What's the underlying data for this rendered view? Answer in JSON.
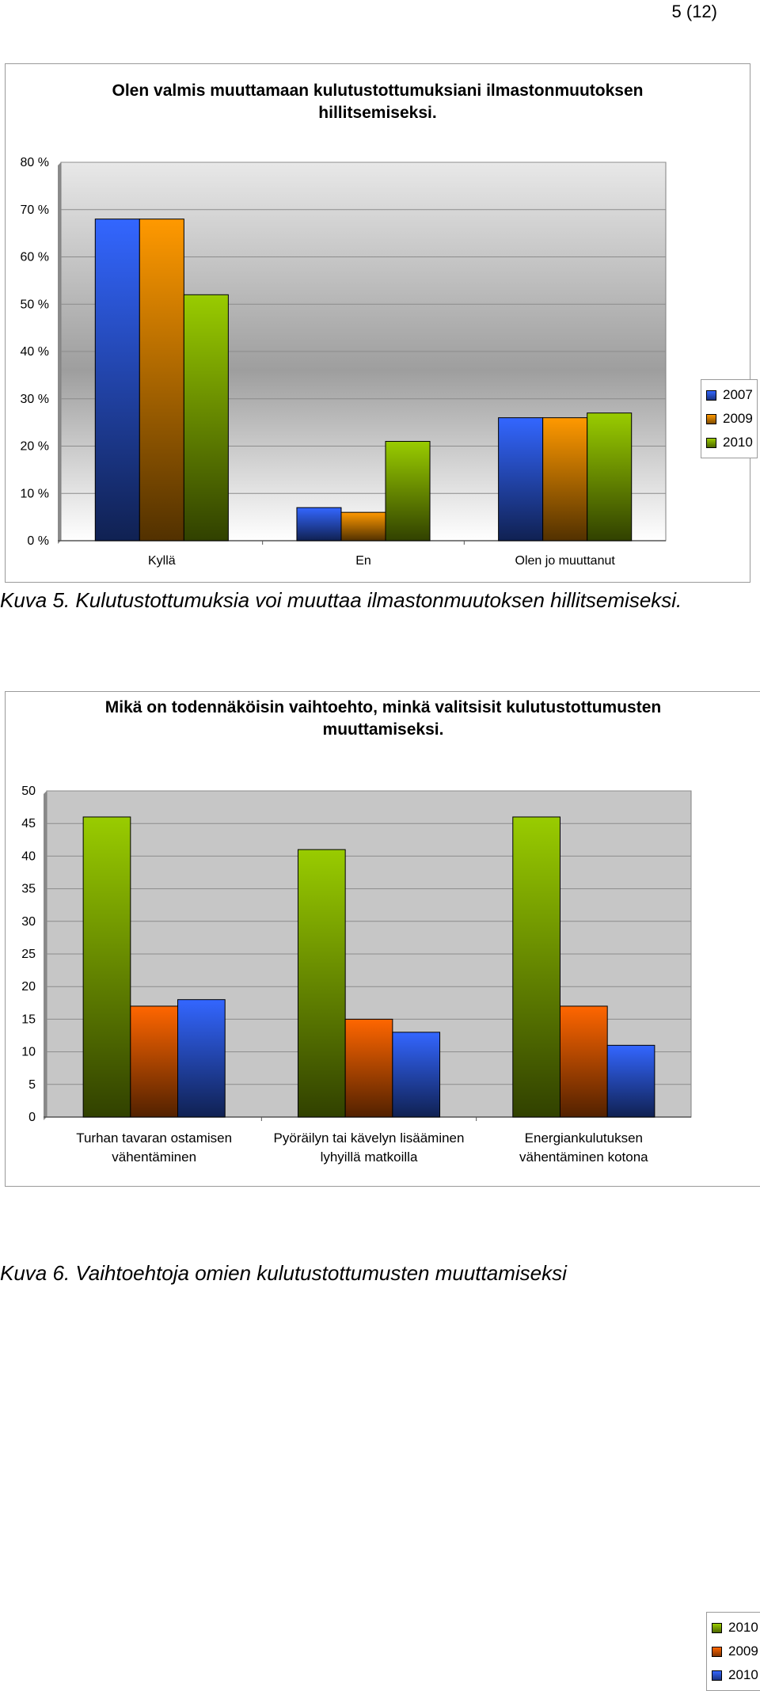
{
  "page": {
    "number": "5 (12)"
  },
  "figure1": {
    "caption": "Kuva 5. Kulutustottumuksia voi muuttaa ilmastonmuutoksen hillitsemiseksi.",
    "chart_data": {
      "type": "bar",
      "title": "Olen valmis muuttamaan kulutustottumuksiani ilmastonmuutoksen hillitsemiseksi.",
      "categories": [
        "Kyllä",
        "En",
        "Olen jo muuttanut"
      ],
      "series": [
        {
          "name": "2007",
          "values": [
            68,
            7,
            26
          ],
          "color": "#3366ff"
        },
        {
          "name": "2009",
          "values": [
            68,
            6,
            26
          ],
          "color": "#ff9900"
        },
        {
          "name": "2010",
          "values": [
            52,
            21,
            27
          ],
          "color": "#99cc00"
        }
      ],
      "ylim": [
        0,
        80
      ],
      "yticks": [
        "0 %",
        "10 %",
        "20 %",
        "30 %",
        "40 %",
        "50 %",
        "60 %",
        "70 %",
        "80 %"
      ],
      "grid": true,
      "legend": "right"
    }
  },
  "figure2": {
    "caption": "Kuva 6. Vaihtoehtoja omien kulutustottumusten muuttamiseksi",
    "chart_data": {
      "type": "bar",
      "title": "Mikä on todennäköisin vaihtoehto, minkä valitsisit kulutustottumusten muuttamiseksi.",
      "categories": [
        [
          "Turhan tavaran ostamisen",
          "vähentäminen"
        ],
        [
          "Pyöräilyn tai kävelyn lisääminen",
          "lyhyillä matkoilla"
        ],
        [
          "Energiankulutuksen",
          "vähentäminen kotona"
        ]
      ],
      "series": [
        {
          "name": "2010",
          "values": [
            46,
            41,
            46
          ],
          "color": "#99cc00"
        },
        {
          "name": "2009",
          "values": [
            17,
            15,
            17
          ],
          "color": "#ff6600"
        },
        {
          "name": "2010",
          "values": [
            18,
            13,
            11
          ],
          "color": "#3366ff"
        }
      ],
      "ylim": [
        0,
        50
      ],
      "yticks": [
        "0",
        "5",
        "10",
        "15",
        "20",
        "25",
        "30",
        "35",
        "40",
        "45",
        "50"
      ],
      "grid": true,
      "legend": "right"
    }
  }
}
